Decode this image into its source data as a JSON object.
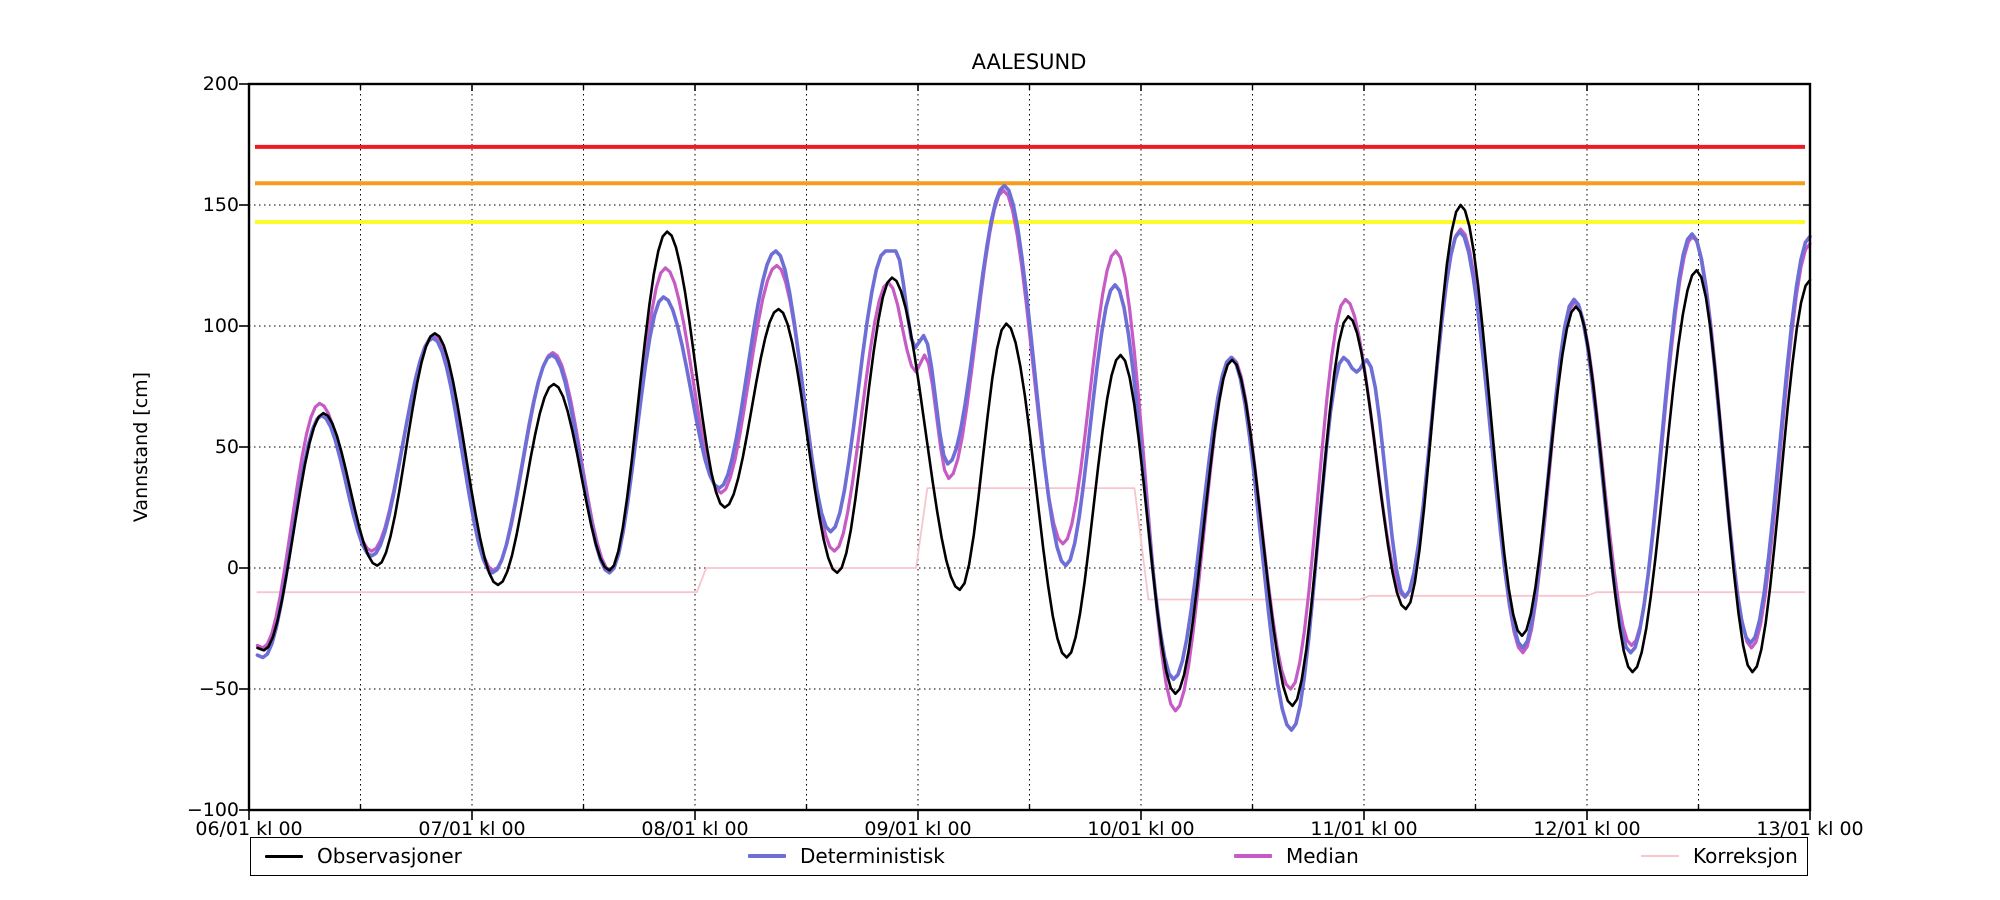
{
  "title": "AALESUND",
  "axes": {
    "ylabel": "Vannstand [cm]",
    "y_ticks": [
      "200",
      "150",
      "100",
      "50",
      "0",
      "−50",
      "−100"
    ],
    "x_ticks": [
      "06/01 kl 00",
      "07/01 kl 00",
      "08/01 kl 00",
      "09/01 kl 00",
      "10/01 kl 00",
      "11/01 kl 00",
      "12/01 kl 00",
      "13/01 kl 00"
    ]
  },
  "legend": {
    "items": [
      {
        "label": "Observasjoner",
        "color": "#000000",
        "thickness": 3
      },
      {
        "label": "Deterministisk",
        "color": "#6e6ed7",
        "thickness": 4
      },
      {
        "label": "Median",
        "color": "#c65bc6",
        "thickness": 4
      },
      {
        "label": "Korreksjon",
        "color": "#f8c5ce",
        "thickness": 2
      }
    ]
  },
  "chart_data": {
    "type": "line",
    "title": "AALESUND",
    "ylabel": "Vannstand [cm]",
    "xlabel": "",
    "x_unit": "hours since 06/01 00:00",
    "x_range_hours": [
      0,
      168
    ],
    "x_tick_hours": [
      0,
      24,
      48,
      72,
      96,
      120,
      144,
      168
    ],
    "x_tick_labels": [
      "06/01 kl 00",
      "07/01 kl 00",
      "08/01 kl 00",
      "09/01 kl 00",
      "10/01 kl 00",
      "11/01 kl 00",
      "12/01 kl 00",
      "13/01 kl 00"
    ],
    "ylim": [
      -100,
      200
    ],
    "y_tick_values": [
      200,
      150,
      100,
      50,
      0,
      -50,
      -100
    ],
    "y_grid_values": [
      150,
      100,
      50,
      0,
      -50
    ],
    "grid": "dotted; vertical every 12 h, horizontal every 50 cm",
    "legend_position": "bottom",
    "thresholds": [
      {
        "name": "red-level",
        "value": 174,
        "color": "#ee1b22"
      },
      {
        "name": "orange-level",
        "value": 159,
        "color": "#f69c1c"
      },
      {
        "name": "yellow-level",
        "value": 143,
        "color": "#fcfc2c"
      }
    ],
    "series": [
      {
        "name": "Korreksjon",
        "color": "#f8c5ce",
        "width": 1.8,
        "interp": "linear",
        "points": [
          [
            0.9,
            -10
          ],
          [
            48.2,
            -10
          ],
          [
            49.2,
            0
          ],
          [
            71.8,
            0
          ],
          [
            73.0,
            33
          ],
          [
            95.3,
            33
          ],
          [
            96.8,
            -13
          ],
          [
            119.5,
            -13
          ],
          [
            120.6,
            -11.5
          ],
          [
            144.0,
            -11.5
          ],
          [
            145.0,
            -10
          ],
          [
            167.4,
            -10
          ]
        ]
      },
      {
        "name": "Median",
        "color": "#c65bc6",
        "width": 3.2,
        "interp": "cosine",
        "points": [
          [
            0.9,
            -32
          ],
          [
            1.5,
            -33
          ],
          [
            7.6,
            68
          ],
          [
            13.2,
            7
          ],
          [
            19.9,
            96
          ],
          [
            26.3,
            -1
          ],
          [
            32.7,
            89
          ],
          [
            38.9,
            -1
          ],
          [
            44.8,
            124
          ],
          [
            50.8,
            31
          ],
          [
            56.8,
            125
          ],
          [
            63.0,
            7
          ],
          [
            68.8,
            118
          ],
          [
            71.8,
            81
          ],
          [
            72.7,
            88
          ],
          [
            75.3,
            37
          ],
          [
            81.2,
            156
          ],
          [
            87.6,
            10
          ],
          [
            93.3,
            131
          ],
          [
            99.7,
            -59
          ],
          [
            105.8,
            87
          ],
          [
            112.1,
            -50
          ],
          [
            118.0,
            111
          ],
          [
            124.4,
            -12
          ],
          [
            130.4,
            140
          ],
          [
            137.1,
            -35
          ],
          [
            142.7,
            110
          ],
          [
            148.8,
            -32
          ],
          [
            155.4,
            137
          ],
          [
            161.7,
            -33
          ],
          [
            168,
            134
          ]
        ]
      },
      {
        "name": "Deterministisk",
        "color": "#6e6ed7",
        "width": 3.6,
        "interp": "cosine",
        "points": [
          [
            0.9,
            -36
          ],
          [
            1.5,
            -37
          ],
          [
            7.8,
            63
          ],
          [
            13.2,
            5
          ],
          [
            19.8,
            95
          ],
          [
            26.2,
            -2
          ],
          [
            32.6,
            88
          ],
          [
            38.8,
            -2
          ],
          [
            44.6,
            112
          ],
          [
            50.6,
            33
          ],
          [
            56.7,
            131
          ],
          [
            62.6,
            15
          ],
          [
            68.5,
            131
          ],
          [
            69.6,
            131
          ],
          [
            71.7,
            91
          ],
          [
            72.6,
            96
          ],
          [
            75.2,
            43
          ],
          [
            81.3,
            158
          ],
          [
            87.9,
            1
          ],
          [
            93.2,
            117
          ],
          [
            99.5,
            -46
          ],
          [
            105.7,
            87
          ],
          [
            112.2,
            -67
          ],
          [
            117.8,
            87
          ],
          [
            119.2,
            81
          ],
          [
            120.3,
            86
          ],
          [
            124.4,
            -12
          ],
          [
            130.3,
            139
          ],
          [
            137.1,
            -33
          ],
          [
            142.6,
            111
          ],
          [
            148.7,
            -35
          ],
          [
            155.3,
            138
          ],
          [
            161.6,
            -31
          ],
          [
            168,
            137
          ]
        ]
      },
      {
        "name": "Observasjoner",
        "color": "#000000",
        "width": 2.6,
        "interp": "cosine",
        "points": [
          [
            0.9,
            -33
          ],
          [
            1.6,
            -34
          ],
          [
            8.0,
            64
          ],
          [
            13.8,
            1
          ],
          [
            20.0,
            97
          ],
          [
            26.8,
            -7
          ],
          [
            32.8,
            76
          ],
          [
            38.8,
            -1
          ],
          [
            45.0,
            139
          ],
          [
            51.2,
            25
          ],
          [
            57.0,
            107
          ],
          [
            63.3,
            -2
          ],
          [
            69.2,
            120
          ],
          [
            76.5,
            -9
          ],
          [
            81.5,
            101
          ],
          [
            88.0,
            -37
          ],
          [
            93.8,
            88
          ],
          [
            99.7,
            -52
          ],
          [
            105.8,
            86
          ],
          [
            112.3,
            -57
          ],
          [
            118.3,
            104
          ],
          [
            124.5,
            -17
          ],
          [
            130.4,
            150
          ],
          [
            137.0,
            -28
          ],
          [
            142.8,
            108
          ],
          [
            148.9,
            -43
          ],
          [
            155.8,
            123
          ],
          [
            161.8,
            -43
          ],
          [
            168,
            119
          ]
        ]
      }
    ]
  }
}
